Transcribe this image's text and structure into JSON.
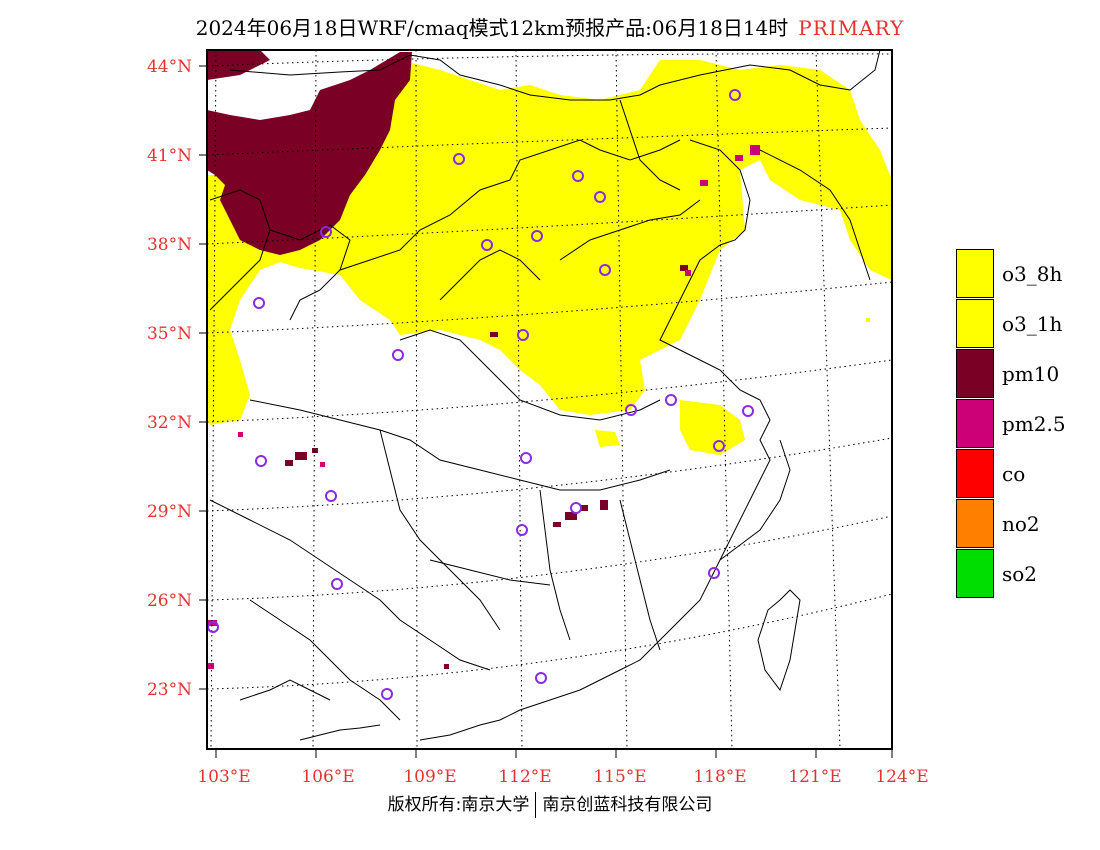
{
  "header": {
    "title": "2024年06月18日WRF/cmaq模式12km预报产品:06月18日14时",
    "tag": "PRIMARY"
  },
  "footer": {
    "left": "版权所有:南京大学",
    "right": "南京创蓝科技有限公司"
  },
  "map": {
    "lat_labels": [
      "44°N",
      "41°N",
      "38°N",
      "35°N",
      "32°N",
      "29°N",
      "26°N",
      "23°N"
    ],
    "lon_labels": [
      "103°E",
      "106°E",
      "109°E",
      "112°E",
      "115°E",
      "118°E",
      "121°E",
      "124°E"
    ],
    "label_color": "#e53333",
    "dominant_pollutant_colors": {
      "o3": "#ffff00",
      "pm10": "#7a0026",
      "pm25": "#cc0077",
      "station_marker": "#8a2be2"
    }
  },
  "legend": {
    "items": [
      {
        "label": "o3_8h",
        "color": "#ffff00"
      },
      {
        "label": "o3_1h",
        "color": "#ffff00"
      },
      {
        "label": "pm10",
        "color": "#7a0026"
      },
      {
        "label": "pm2.5",
        "color": "#cc0077"
      },
      {
        "label": "co",
        "color": "#ff0000"
      },
      {
        "label": "no2",
        "color": "#ff8000"
      },
      {
        "label": "so2",
        "color": "#00dd00"
      }
    ]
  }
}
